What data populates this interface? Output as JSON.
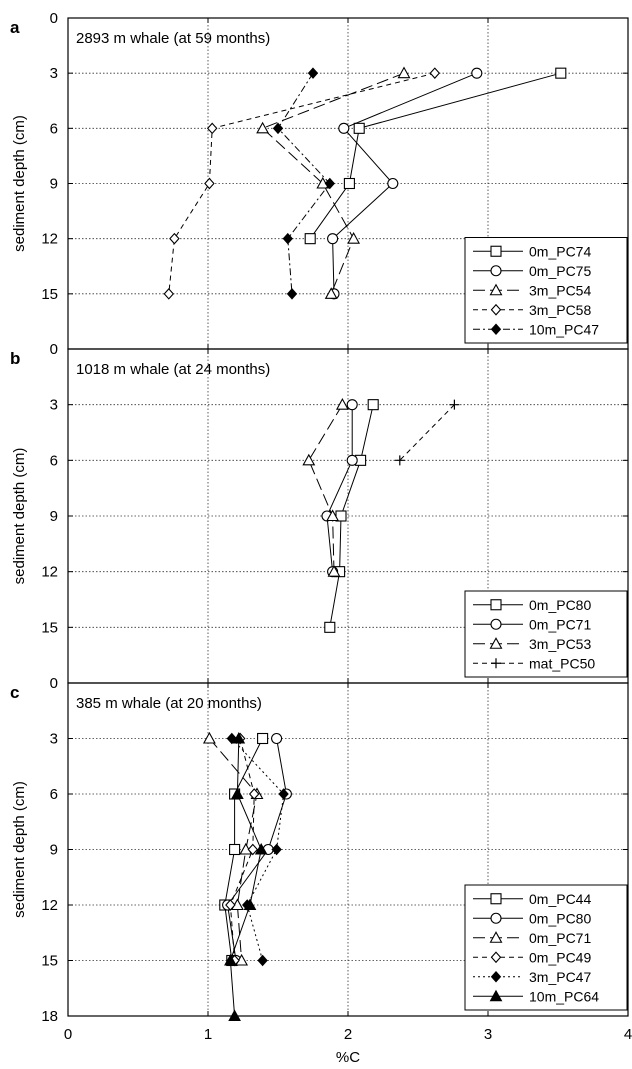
{
  "figure": {
    "xlabel": "%C",
    "ylabel": "sediment depth (cm)",
    "x_ticks": [
      "0",
      "1",
      "2",
      "3",
      "4"
    ]
  },
  "chart_data": [
    {
      "type": "line",
      "panel_letter": "a",
      "title": "2893 m whale (at 59 months)",
      "xlim": [
        0,
        4
      ],
      "ylim": [
        0,
        18
      ],
      "y_ticks": [
        "0",
        "3",
        "6",
        "9",
        "12",
        "15"
      ],
      "grid": true,
      "legend_position": "bottom-right",
      "series": [
        {
          "name": "0m_PC74",
          "marker": "square",
          "dash": "solid",
          "points": [
            [
              3.52,
              3
            ],
            [
              2.08,
              6
            ],
            [
              2.01,
              9
            ],
            [
              1.73,
              12
            ]
          ]
        },
        {
          "name": "0m_PC75",
          "marker": "circle",
          "dash": "solid",
          "points": [
            [
              2.92,
              3
            ],
            [
              1.97,
              6
            ],
            [
              2.32,
              9
            ],
            [
              1.89,
              12
            ],
            [
              1.9,
              15
            ]
          ]
        },
        {
          "name": "3m_PC54",
          "marker": "triangle",
          "dash": "dashed",
          "points": [
            [
              2.4,
              3
            ],
            [
              1.39,
              6
            ],
            [
              1.82,
              9
            ],
            [
              2.04,
              12
            ],
            [
              1.88,
              15
            ]
          ]
        },
        {
          "name": "3m_PC58",
          "marker": "diamond",
          "dash": "shortdash",
          "points": [
            [
              2.62,
              3
            ],
            [
              1.03,
              6
            ],
            [
              1.01,
              9
            ],
            [
              0.76,
              12
            ],
            [
              0.72,
              15
            ]
          ]
        },
        {
          "name": "10m_PC47",
          "marker": "filled-diamond",
          "dash": "dashdot",
          "points": [
            [
              1.75,
              3
            ],
            [
              1.5,
              6
            ],
            [
              1.87,
              9
            ],
            [
              1.57,
              12
            ],
            [
              1.6,
              15
            ]
          ]
        }
      ]
    },
    {
      "type": "line",
      "panel_letter": "b",
      "title": "1018 m whale (at 24 months)",
      "xlim": [
        0,
        4
      ],
      "ylim": [
        0,
        18
      ],
      "y_ticks": [
        "0",
        "3",
        "6",
        "9",
        "12",
        "15"
      ],
      "grid": true,
      "legend_position": "bottom-right",
      "series": [
        {
          "name": "0m_PC80",
          "marker": "square",
          "dash": "solid",
          "points": [
            [
              2.18,
              3
            ],
            [
              2.09,
              6
            ],
            [
              1.95,
              9
            ],
            [
              1.94,
              12
            ],
            [
              1.87,
              15
            ]
          ]
        },
        {
          "name": "0m_PC71",
          "marker": "circle",
          "dash": "solid",
          "points": [
            [
              2.03,
              3
            ],
            [
              2.03,
              6
            ],
            [
              1.85,
              9
            ],
            [
              1.89,
              12
            ]
          ]
        },
        {
          "name": "3m_PC53",
          "marker": "triangle",
          "dash": "dashed",
          "points": [
            [
              1.96,
              3
            ],
            [
              1.72,
              6
            ],
            [
              1.89,
              9
            ],
            [
              1.9,
              12
            ]
          ]
        },
        {
          "name": "mat_PC50",
          "marker": "plus",
          "dash": "shortdash",
          "points": [
            [
              2.76,
              3
            ],
            [
              2.37,
              6
            ]
          ]
        }
      ]
    },
    {
      "type": "line",
      "panel_letter": "c",
      "title": "385 m whale (at 20 months)",
      "xlim": [
        0,
        4
      ],
      "ylim": [
        0,
        18
      ],
      "y_ticks": [
        "0",
        "3",
        "6",
        "9",
        "12",
        "15",
        "18"
      ],
      "grid": true,
      "legend_position": "bottom-right",
      "series": [
        {
          "name": "0m_PC44",
          "marker": "square",
          "dash": "solid",
          "points": [
            [
              1.39,
              3
            ],
            [
              1.19,
              6
            ],
            [
              1.19,
              9
            ],
            [
              1.12,
              12
            ],
            [
              1.17,
              15
            ]
          ]
        },
        {
          "name": "0m_PC80",
          "marker": "circle",
          "dash": "solid",
          "points": [
            [
              1.49,
              3
            ],
            [
              1.56,
              6
            ],
            [
              1.43,
              9
            ],
            [
              1.14,
              12
            ],
            [
              1.2,
              15
            ]
          ]
        },
        {
          "name": "0m_PC71",
          "marker": "triangle",
          "dash": "dashed",
          "points": [
            [
              1.01,
              3
            ],
            [
              1.35,
              6
            ],
            [
              1.27,
              9
            ],
            [
              1.21,
              12
            ],
            [
              1.24,
              15
            ]
          ]
        },
        {
          "name": "0m_PC49",
          "marker": "diamond",
          "dash": "shortdash",
          "points": [
            [
              1.23,
              3
            ],
            [
              1.33,
              6
            ],
            [
              1.32,
              9
            ],
            [
              1.16,
              12
            ],
            [
              1.19,
              15
            ]
          ]
        },
        {
          "name": "3m_PC47",
          "marker": "filled-diamond",
          "dash": "dotted",
          "points": [
            [
              1.17,
              3
            ],
            [
              1.54,
              6
            ],
            [
              1.49,
              9
            ],
            [
              1.28,
              12
            ],
            [
              1.39,
              15
            ]
          ]
        },
        {
          "name": "10m_PC64",
          "marker": "filled-triangle",
          "dash": "solid",
          "points": [
            [
              1.22,
              3
            ],
            [
              1.21,
              6
            ],
            [
              1.38,
              9
            ],
            [
              1.3,
              12
            ],
            [
              1.16,
              15
            ],
            [
              1.19,
              18
            ]
          ]
        }
      ]
    }
  ]
}
